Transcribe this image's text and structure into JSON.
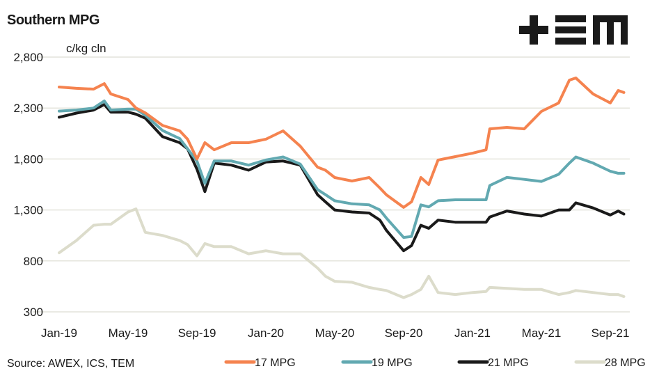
{
  "logo": {
    "text": "+EM",
    "color": "#1a1a1a"
  },
  "source": "Source: AWEX, ICS, TEM",
  "chart_data": {
    "type": "line",
    "title": "Southern MPG",
    "ylabel": "c/kg cln",
    "xlabel": "",
    "ylim": [
      300,
      2800
    ],
    "yticks": [
      300,
      800,
      1300,
      1800,
      2300,
      2800
    ],
    "ytick_labels": [
      "300",
      "800",
      "1,300",
      "1,800",
      "2,300",
      "2,800"
    ],
    "xlim": [
      "2019-01-01",
      "2021-09-30"
    ],
    "xticks": [
      "2019-01-01",
      "2019-05-01",
      "2019-09-01",
      "2020-01-01",
      "2020-05-01",
      "2020-09-01",
      "2021-01-01",
      "2021-05-01",
      "2021-09-01"
    ],
    "xtick_labels": [
      "Jan-19",
      "May-19",
      "Sep-19",
      "Jan-20",
      "May-20",
      "Sep-20",
      "Jan-21",
      "May-21",
      "Sep-21"
    ],
    "grid": "horizontal",
    "legend": "bottom",
    "x": [
      "2019-01-01",
      "2019-02-01",
      "2019-03-01",
      "2019-03-20",
      "2019-04-01",
      "2019-05-01",
      "2019-05-15",
      "2019-06-01",
      "2019-07-01",
      "2019-08-01",
      "2019-08-15",
      "2019-09-01",
      "2019-09-15",
      "2019-10-01",
      "2019-11-01",
      "2019-12-01",
      "2020-01-01",
      "2020-02-01",
      "2020-03-01",
      "2020-04-01",
      "2020-04-15",
      "2020-05-01",
      "2020-06-01",
      "2020-07-01",
      "2020-07-20",
      "2020-08-01",
      "2020-09-01",
      "2020-09-15",
      "2020-10-01",
      "2020-10-15",
      "2020-11-01",
      "2020-12-01",
      "2021-01-01",
      "2021-01-25",
      "2021-02-01",
      "2021-03-01",
      "2021-04-01",
      "2021-05-01",
      "2021-06-01",
      "2021-06-20",
      "2021-07-01",
      "2021-08-01",
      "2021-09-01",
      "2021-09-15",
      "2021-09-25"
    ],
    "series": [
      {
        "name": "17 MPG",
        "color": "#f5834f",
        "values": [
          2506,
          2493,
          2486,
          2540,
          2438,
          2383,
          2300,
          2253,
          2130,
          2076,
          1994,
          1800,
          1960,
          1890,
          1960,
          1960,
          1994,
          2076,
          1926,
          1720,
          1690,
          1618,
          1584,
          1618,
          1516,
          1448,
          1325,
          1380,
          1618,
          1550,
          1790,
          1823,
          1857,
          1890,
          2096,
          2110,
          2096,
          2267,
          2350,
          2574,
          2595,
          2438,
          2350,
          2472,
          2452
        ]
      },
      {
        "name": "19 MPG",
        "color": "#62a9b1",
        "values": [
          2270,
          2280,
          2300,
          2370,
          2280,
          2290,
          2290,
          2230,
          2080,
          2000,
          1900,
          1780,
          1560,
          1780,
          1780,
          1740,
          1790,
          1820,
          1750,
          1500,
          1450,
          1390,
          1360,
          1350,
          1300,
          1220,
          1030,
          1040,
          1350,
          1330,
          1390,
          1400,
          1400,
          1400,
          1540,
          1620,
          1600,
          1580,
          1650,
          1760,
          1820,
          1760,
          1680,
          1660,
          1660
        ]
      },
      {
        "name": "21 MPG",
        "color": "#1a1a1a",
        "values": [
          2210,
          2250,
          2280,
          2335,
          2260,
          2260,
          2240,
          2200,
          2020,
          1960,
          1900,
          1700,
          1480,
          1760,
          1740,
          1690,
          1770,
          1780,
          1740,
          1450,
          1380,
          1300,
          1280,
          1270,
          1200,
          1100,
          900,
          950,
          1150,
          1120,
          1200,
          1180,
          1180,
          1180,
          1230,
          1290,
          1260,
          1240,
          1300,
          1300,
          1370,
          1320,
          1250,
          1290,
          1260
        ]
      },
      {
        "name": "28 MPG",
        "color": "#dcdccb",
        "values": [
          880,
          1000,
          1150,
          1160,
          1160,
          1280,
          1310,
          1080,
          1050,
          1000,
          960,
          850,
          970,
          940,
          940,
          870,
          900,
          870,
          870,
          730,
          650,
          600,
          590,
          540,
          520,
          510,
          440,
          470,
          520,
          650,
          490,
          470,
          490,
          500,
          540,
          530,
          520,
          520,
          470,
          490,
          510,
          490,
          470,
          470,
          450
        ]
      }
    ]
  }
}
